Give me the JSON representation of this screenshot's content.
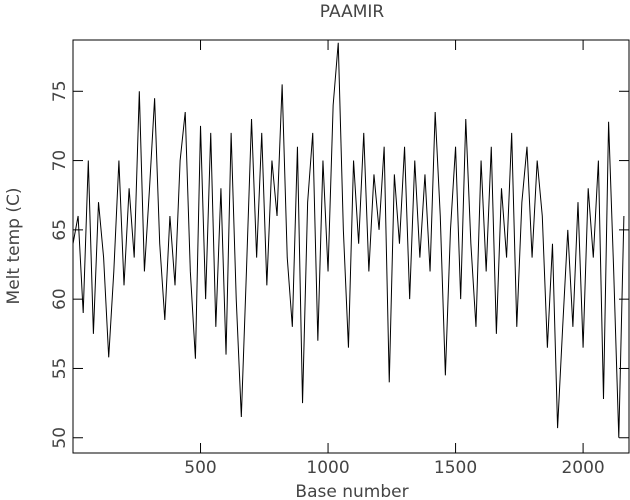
{
  "chart_data": {
    "type": "line",
    "title": "PAAMIR",
    "x_label": "Base number",
    "y_label": "Melt temp (C)",
    "x": [
      0,
      20,
      40,
      60,
      80,
      100,
      120,
      140,
      160,
      180,
      200,
      220,
      240,
      260,
      280,
      300,
      320,
      340,
      360,
      380,
      400,
      420,
      440,
      460,
      480,
      500,
      520,
      540,
      560,
      580,
      600,
      620,
      640,
      660,
      680,
      700,
      720,
      740,
      760,
      780,
      800,
      820,
      840,
      860,
      880,
      900,
      920,
      940,
      960,
      980,
      1000,
      1020,
      1040,
      1060,
      1080,
      1100,
      1120,
      1140,
      1160,
      1180,
      1200,
      1220,
      1240,
      1260,
      1280,
      1300,
      1320,
      1340,
      1360,
      1380,
      1400,
      1420,
      1440,
      1460,
      1480,
      1500,
      1520,
      1540,
      1560,
      1580,
      1600,
      1620,
      1640,
      1660,
      1680,
      1700,
      1720,
      1740,
      1760,
      1780,
      1800,
      1820,
      1840,
      1860,
      1880,
      1900,
      1920,
      1940,
      1960,
      1980,
      2000,
      2020,
      2040,
      2060,
      2080,
      2100,
      2120,
      2140,
      2160
    ],
    "series": [
      {
        "color": "#000000",
        "values": [
          64,
          66,
          59,
          70,
          57.5,
          67,
          63,
          55.8,
          62,
          70,
          61,
          68,
          63,
          75,
          62,
          68,
          74.5,
          64,
          58.5,
          66,
          61,
          70,
          73.5,
          62,
          55.7,
          72.5,
          60,
          72,
          58,
          68,
          56,
          72,
          60,
          51.5,
          62,
          73,
          63,
          72,
          61,
          70,
          66,
          75.5,
          63,
          58,
          71,
          52.5,
          67,
          72,
          57,
          70,
          62,
          74,
          78.5,
          65,
          56.5,
          70,
          64,
          72,
          62,
          69,
          65,
          71,
          54,
          69,
          64,
          71,
          60,
          70,
          63,
          69,
          62,
          73.5,
          66,
          54.5,
          65,
          71,
          60,
          73,
          64,
          58,
          70,
          62,
          71,
          57.5,
          68,
          63,
          72,
          58,
          67,
          71,
          63,
          70,
          66,
          56.5,
          64,
          50.7,
          58,
          65,
          58,
          67,
          56.5,
          68,
          63,
          70,
          52.8,
          72.8,
          62,
          50,
          66
        ]
      }
    ],
    "xlim": [
      0,
      2180
    ],
    "ylim": [
      48.9,
      78.7
    ],
    "xticks": [
      500,
      1000,
      1500,
      2000
    ],
    "yticks": [
      50,
      55,
      60,
      65,
      70,
      75
    ]
  }
}
